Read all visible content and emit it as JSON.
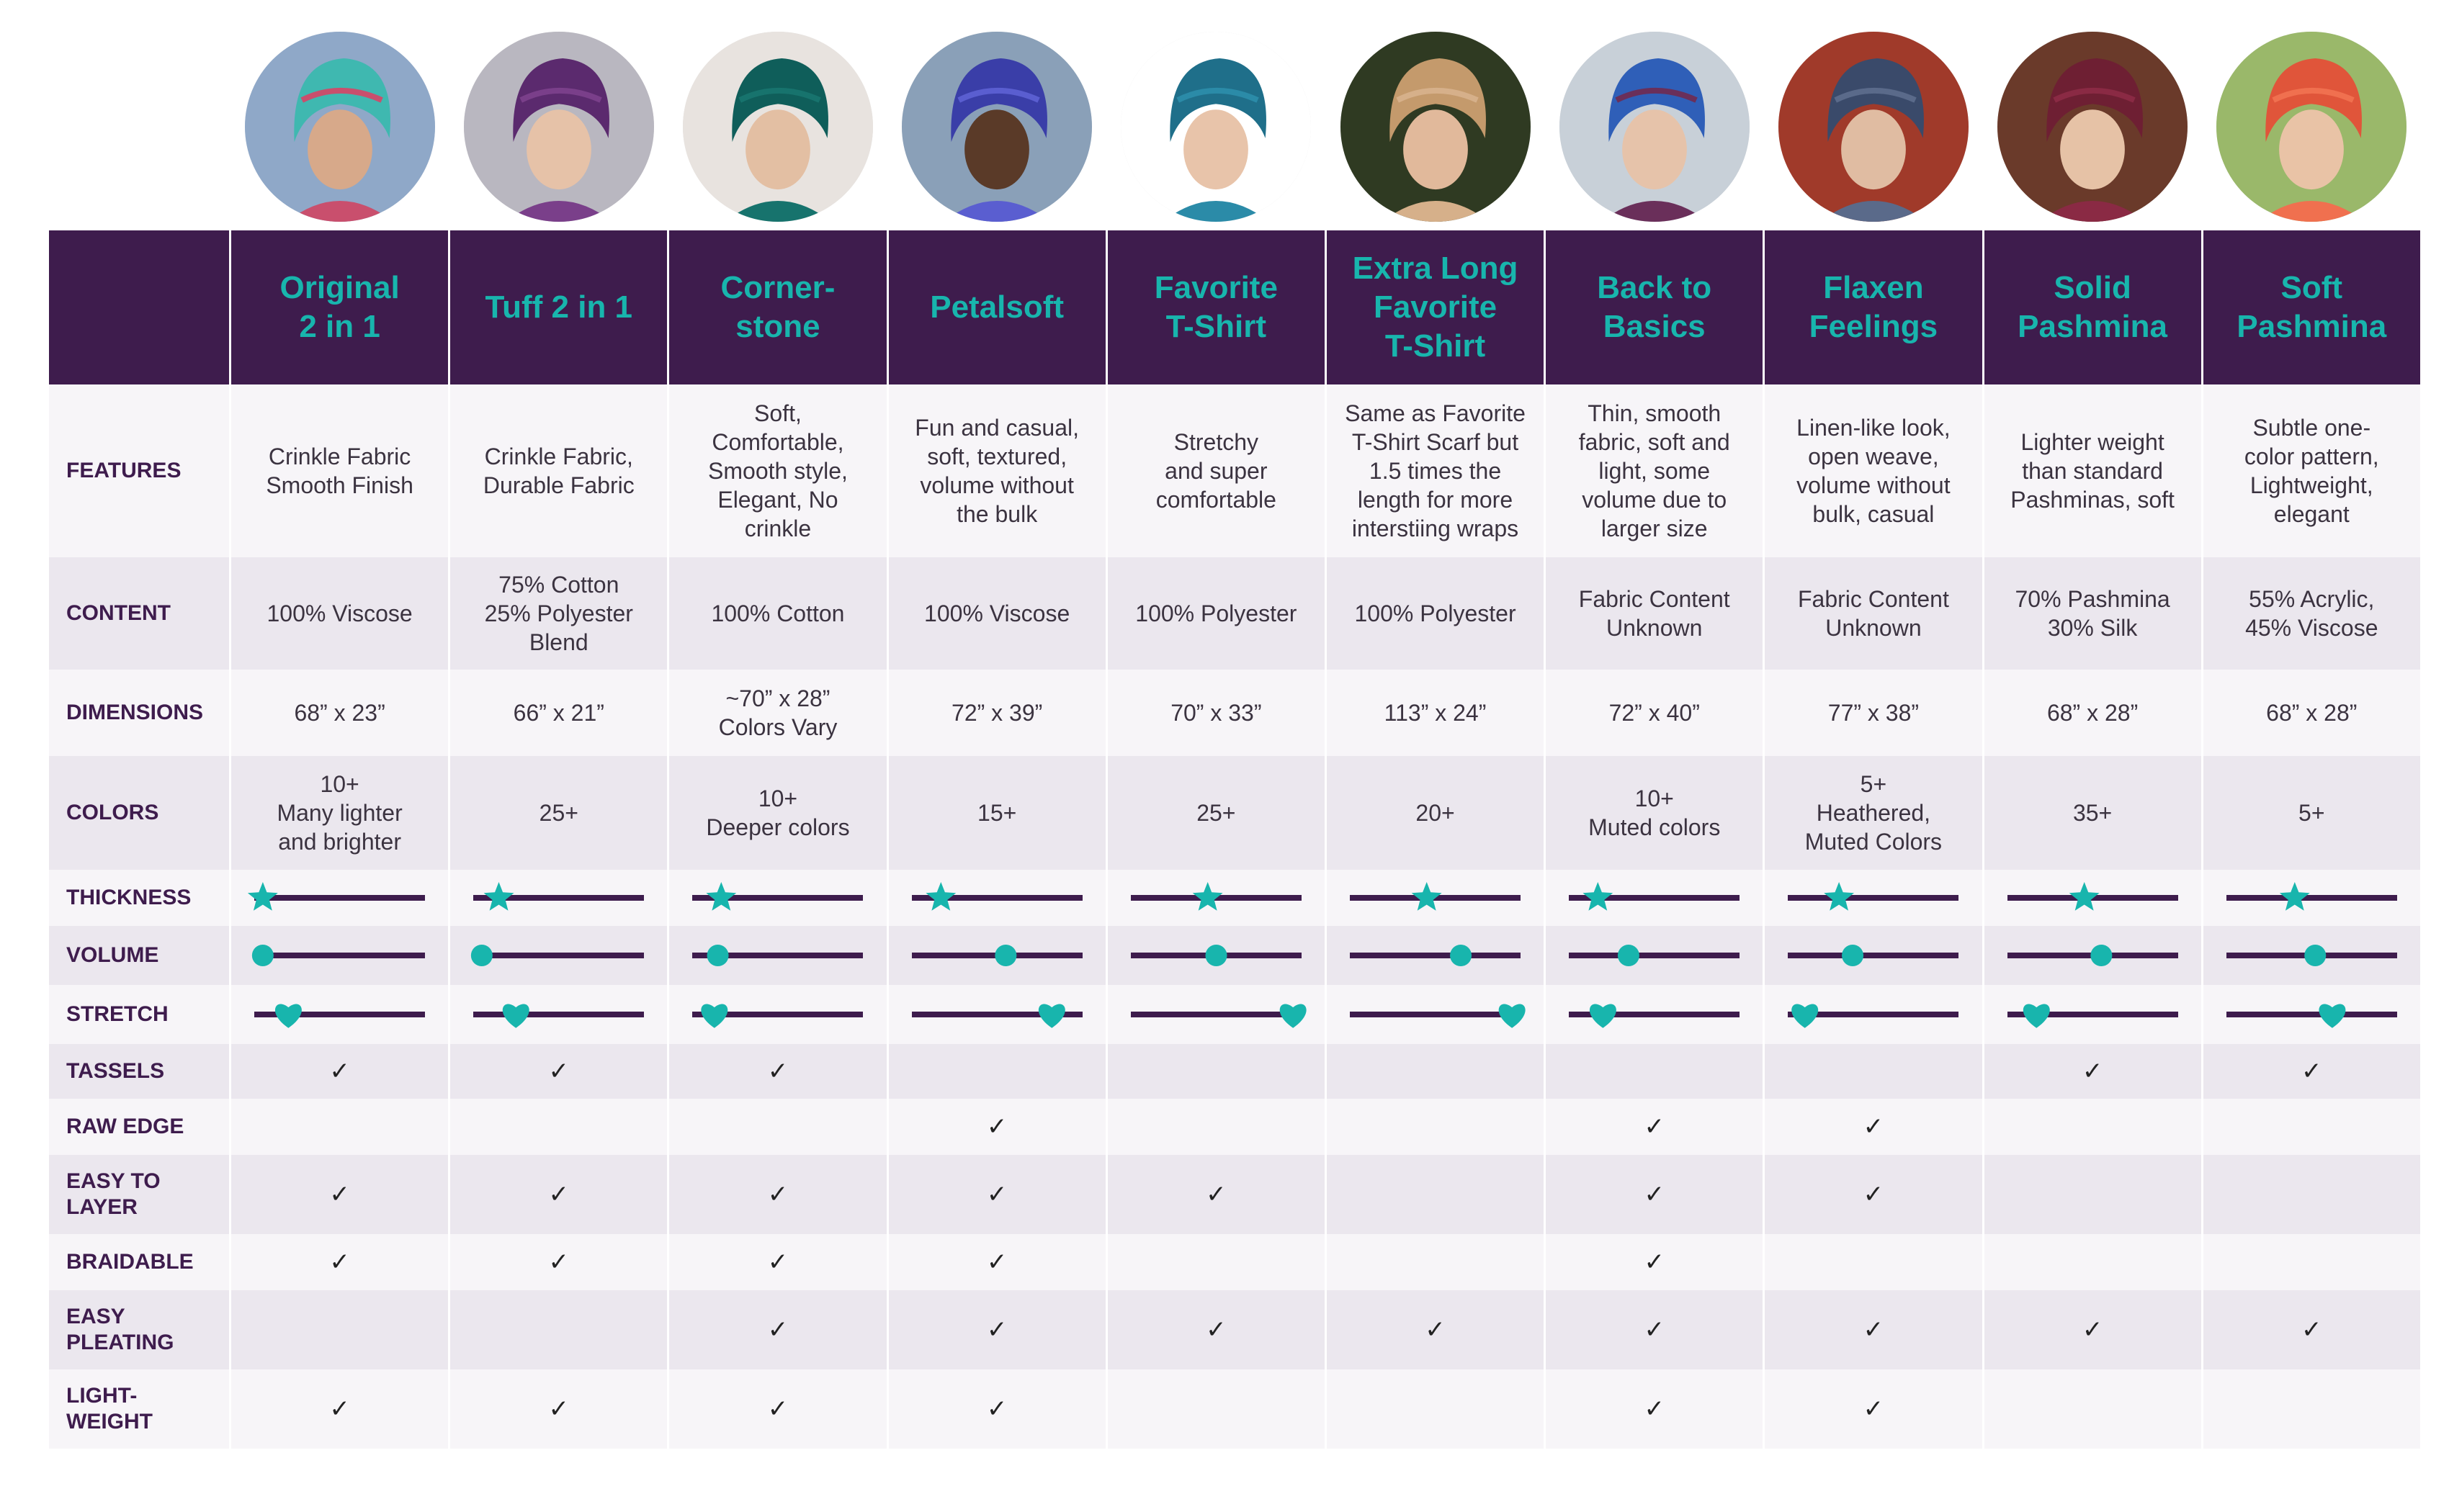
{
  "colors": {
    "header_bg": "#3e1c4d",
    "accent": "#18b5ad",
    "line": "#3e1c4d",
    "row_light": "#f7f5f8",
    "row_dark": "#ebe7ee"
  },
  "icons": {
    "thickness": "star-icon",
    "volume": "circle-icon",
    "stretch": "heart-icon",
    "check": "check-icon"
  },
  "check_glyph": "✓",
  "products": [
    {
      "name": "Original\n2 in 1",
      "features": "Crinkle Fabric\nSmooth Finish",
      "content": "100% Viscose",
      "dimensions": "68” x 23”",
      "colors": "10+\nMany lighter\nand brighter",
      "thickness": 0.05,
      "volume": 0.05,
      "stretch": 0.2,
      "tassels": true,
      "raw_edge": false,
      "easy_to_layer": true,
      "braidable": true,
      "easy_pleating": false,
      "lightweight": true
    },
    {
      "name": "Tuff 2 in 1",
      "features": "Crinkle Fabric,\nDurable Fabric",
      "content": "75% Cotton\n25% Polyester\nBlend",
      "dimensions": "66” x 21”",
      "colors": "25+",
      "thickness": 0.15,
      "volume": 0.05,
      "stretch": 0.25,
      "tassels": true,
      "raw_edge": false,
      "easy_to_layer": true,
      "braidable": true,
      "easy_pleating": false,
      "lightweight": true
    },
    {
      "name": "Corner-\nstone",
      "features": "Soft,\nComfortable,\nSmooth style,\nElegant, No\ncrinkle",
      "content": "100% Cotton",
      "dimensions": "~70” x 28”\nColors Vary",
      "colors": "10+\nDeeper colors",
      "thickness": 0.17,
      "volume": 0.15,
      "stretch": 0.13,
      "tassels": true,
      "raw_edge": false,
      "easy_to_layer": true,
      "braidable": true,
      "easy_pleating": true,
      "lightweight": true
    },
    {
      "name": "Petalsoft",
      "features": "Fun and casual,\nsoft, textured,\nvolume without\nthe bulk",
      "content": "100% Viscose",
      "dimensions": "72” x 39”",
      "colors": "15+",
      "thickness": 0.17,
      "volume": 0.55,
      "stretch": 0.82,
      "tassels": false,
      "raw_edge": true,
      "easy_to_layer": true,
      "braidable": true,
      "easy_pleating": true,
      "lightweight": true
    },
    {
      "name": "Favorite\nT-Shirt",
      "features": "Stretchy\nand super\ncomfortable",
      "content": "100% Polyester",
      "dimensions": "70” x 33”",
      "colors": "25+",
      "thickness": 0.45,
      "volume": 0.5,
      "stretch": 0.95,
      "tassels": false,
      "raw_edge": false,
      "easy_to_layer": true,
      "braidable": false,
      "easy_pleating": true,
      "lightweight": false
    },
    {
      "name": "Extra Long\nFavorite\nT-Shirt",
      "features": "Same as Favorite\nT-Shirt Scarf but\n1.5 times the\nlength for more\ninterstiing wraps",
      "content": "100% Polyester",
      "dimensions": "113” x 24”",
      "colors": "20+",
      "thickness": 0.45,
      "volume": 0.65,
      "stretch": 0.95,
      "tassels": false,
      "raw_edge": false,
      "easy_to_layer": false,
      "braidable": false,
      "easy_pleating": true,
      "lightweight": false
    },
    {
      "name": "Back to\nBasics",
      "features": "Thin, smooth\nfabric, soft and\nlight, some\nvolume due to\nlarger size",
      "content": "Fabric Content\nUnknown",
      "dimensions": "72” x 40”",
      "colors": "10+\nMuted colors",
      "thickness": 0.17,
      "volume": 0.35,
      "stretch": 0.2,
      "tassels": false,
      "raw_edge": true,
      "easy_to_layer": true,
      "braidable": true,
      "easy_pleating": true,
      "lightweight": true
    },
    {
      "name": "Flaxen\nFeelings",
      "features": "Linen-like look,\nopen weave,\nvolume without\nbulk, casual",
      "content": "Fabric Content\nUnknown",
      "dimensions": "77” x 38”",
      "colors": "5+\nHeathered,\nMuted Colors",
      "thickness": 0.3,
      "volume": 0.38,
      "stretch": 0.1,
      "tassels": false,
      "raw_edge": true,
      "easy_to_layer": true,
      "braidable": false,
      "easy_pleating": true,
      "lightweight": true
    },
    {
      "name": "Solid\nPashmina",
      "features": "Lighter weight\nthan standard\nPashminas, soft",
      "content": "70% Pashmina\n30% Silk",
      "dimensions": "68” x 28”",
      "colors": "35+",
      "thickness": 0.45,
      "volume": 0.55,
      "stretch": 0.17,
      "tassels": true,
      "raw_edge": false,
      "easy_to_layer": false,
      "braidable": false,
      "easy_pleating": true,
      "lightweight": false
    },
    {
      "name": "Soft\nPashmina",
      "features": "Subtle one-\ncolor pattern,\nLightweight,\nelegant",
      "content": "55% Acrylic,\n45% Viscose",
      "dimensions": "68” x 28”",
      "colors": "5+",
      "thickness": 0.4,
      "volume": 0.52,
      "stretch": 0.62,
      "tassels": true,
      "raw_edge": false,
      "easy_to_layer": false,
      "braidable": false,
      "easy_pleating": true,
      "lightweight": false
    }
  ],
  "avatar_colors": [
    {
      "scarf": "#3fb8b0",
      "scarf2": "#c94f6d",
      "bg": "#8fa8c8",
      "skin": "#d7a98a"
    },
    {
      "scarf": "#5b2a6e",
      "scarf2": "#7a3f8a",
      "bg": "#b9b7c0",
      "skin": "#e6c2a8"
    },
    {
      "scarf": "#0f5e5a",
      "scarf2": "#17736d",
      "bg": "#e8e3df",
      "skin": "#e3bfa3"
    },
    {
      "scarf": "#3a3ea8",
      "scarf2": "#5a5ed0",
      "bg": "#8aa0b8",
      "skin": "#5a3a28"
    },
    {
      "scarf": "#1f6f8a",
      "scarf2": "#2b8ba8",
      "bg": "#ffffff",
      "skin": "#e8c4aa"
    },
    {
      "scarf": "#c49a6c",
      "scarf2": "#d6b08a",
      "bg": "#2f3a22",
      "skin": "#e1b99b"
    },
    {
      "scarf": "#2f5fb8",
      "scarf2": "#6a2f5a",
      "bg": "#c8d0d8",
      "skin": "#e6c3aa"
    },
    {
      "scarf": "#3a4a6a",
      "scarf2": "#5a6a8a",
      "bg": "#a03a2a",
      "skin": "#e0bca2"
    },
    {
      "scarf": "#6e1f33",
      "scarf2": "#8a2a44",
      "bg": "#6a3a2a",
      "skin": "#e6c2a6"
    },
    {
      "scarf": "#e0553a",
      "scarf2": "#f0704f",
      "bg": "#9ab86a",
      "skin": "#e9c3a6"
    }
  ],
  "row_labels": {
    "features": "FEATURES",
    "content": "CONTENT",
    "dimensions": "DIMENSIONS",
    "colors": "COLORS",
    "thickness": "THICKNESS",
    "volume": "VOLUME",
    "stretch": "STRETCH",
    "tassels": "TASSELS",
    "raw_edge": "RAW EDGE",
    "easy_to_layer": "EASY TO\nLAYER",
    "braidable": "BRAIDABLE",
    "easy_pleating": "EASY\nPLEATING",
    "lightweight": "LIGHT-\nWEIGHT"
  }
}
